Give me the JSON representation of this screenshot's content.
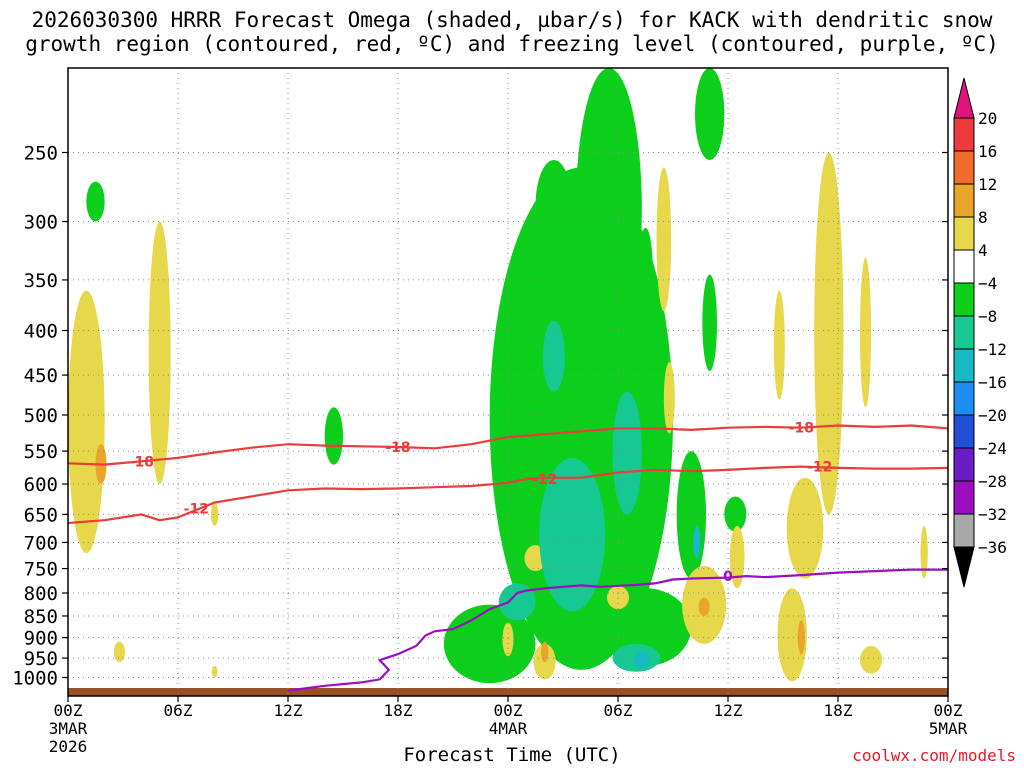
{
  "title": {
    "line1": "2026030300 HRRR Forecast Omega (shaded, µbar/s) for KACK with dendritic snow",
    "line2": "growth region (contoured, red, ºC) and freezing level (contoured, purple, ºC)"
  },
  "credit": "coolwx.com/models",
  "chart_data": {
    "type": "heatmap",
    "title": "2026030300 HRRR Forecast Omega (shaded, µbar/s) for KACK with dendritic snow growth region (contoured, red, ºC) and freezing level (contoured, purple, ºC)",
    "xlabel": "Forecast Time (UTC)",
    "ylabel": "",
    "x_range_hours": [
      0,
      48
    ],
    "y_range_hPa": [
      1050,
      200
    ],
    "y_scale": "log-pressure",
    "grid": "dotted",
    "x_ticks": [
      {
        "h": 0,
        "label": "00Z",
        "sub1": "3MAR",
        "sub2": "2026"
      },
      {
        "h": 6,
        "label": "06Z",
        "sub1": "",
        "sub2": ""
      },
      {
        "h": 12,
        "label": "12Z",
        "sub1": "",
        "sub2": ""
      },
      {
        "h": 18,
        "label": "18Z",
        "sub1": "",
        "sub2": ""
      },
      {
        "h": 24,
        "label": "00Z",
        "sub1": "4MAR",
        "sub2": ""
      },
      {
        "h": 30,
        "label": "06Z",
        "sub1": "",
        "sub2": ""
      },
      {
        "h": 36,
        "label": "12Z",
        "sub1": "",
        "sub2": ""
      },
      {
        "h": 42,
        "label": "18Z",
        "sub1": "",
        "sub2": ""
      },
      {
        "h": 48,
        "label": "00Z",
        "sub1": "5MAR",
        "sub2": ""
      }
    ],
    "y_ticks": [
      250,
      300,
      350,
      400,
      450,
      500,
      550,
      600,
      650,
      700,
      750,
      800,
      850,
      900,
      950,
      1000
    ],
    "colorbar": {
      "labels": [
        "20",
        "16",
        "12",
        "8",
        "4",
        "−4",
        "−8",
        "−12",
        "−16",
        "−20",
        "−24",
        "−28",
        "−32",
        "−36"
      ],
      "colors": [
        "#e0147f",
        "#ee3a3a",
        "#f26b2c",
        "#e9a42a",
        "#e6d84a",
        "#ffffff",
        "#0ccf1c",
        "#16c993",
        "#17b9c7",
        "#1f8ef3",
        "#1f4fd6",
        "#6a1dc4",
        "#9c0fc0",
        "#a9a9a9",
        "#000000"
      ]
    },
    "contours": [
      {
        "name": "-18",
        "color": "#ec3b3b",
        "points": [
          [
            0,
            568
          ],
          [
            2,
            570
          ],
          [
            4,
            565
          ],
          [
            6,
            560
          ],
          [
            8,
            552
          ],
          [
            10,
            545
          ],
          [
            12,
            540
          ],
          [
            14,
            542
          ],
          [
            16,
            543
          ],
          [
            18,
            544
          ],
          [
            20,
            546
          ],
          [
            22,
            540
          ],
          [
            24,
            530
          ],
          [
            26,
            526
          ],
          [
            28,
            522
          ],
          [
            30,
            518
          ],
          [
            32,
            518
          ],
          [
            34,
            520
          ],
          [
            36,
            517
          ],
          [
            38,
            516
          ],
          [
            40,
            517
          ],
          [
            42,
            514
          ],
          [
            44,
            516
          ],
          [
            46,
            514
          ],
          [
            48,
            518
          ]
        ],
        "labels": [
          [
            4,
            565
          ],
          [
            18,
            544
          ],
          [
            40,
            517
          ]
        ]
      },
      {
        "name": "-12",
        "color": "#ec3b3b",
        "points": [
          [
            0,
            665
          ],
          [
            2,
            660
          ],
          [
            4,
            650
          ],
          [
            5,
            660
          ],
          [
            6,
            655
          ],
          [
            8,
            630
          ],
          [
            10,
            620
          ],
          [
            12,
            610
          ],
          [
            14,
            607
          ],
          [
            16,
            608
          ],
          [
            18,
            607
          ],
          [
            20,
            605
          ],
          [
            22,
            603
          ],
          [
            24,
            598
          ],
          [
            25,
            592
          ],
          [
            26,
            590
          ],
          [
            28,
            590
          ],
          [
            30,
            582
          ],
          [
            32,
            578
          ],
          [
            34,
            580
          ],
          [
            36,
            578
          ],
          [
            38,
            575
          ],
          [
            40,
            573
          ],
          [
            42,
            575
          ],
          [
            44,
            576
          ],
          [
            46,
            576
          ],
          [
            48,
            575
          ]
        ],
        "labels": [
          [
            7,
            640
          ],
          [
            26,
            592
          ],
          [
            41,
            573
          ]
        ]
      },
      {
        "name": "0",
        "color": "#9a0fc0",
        "points": [
          [
            12,
            1035
          ],
          [
            14,
            1022
          ],
          [
            16,
            1013
          ],
          [
            17,
            1005
          ],
          [
            17.5,
            980
          ],
          [
            17,
            955
          ],
          [
            18,
            940
          ],
          [
            19,
            920
          ],
          [
            19.5,
            895
          ],
          [
            20,
            885
          ],
          [
            21,
            880
          ],
          [
            22,
            860
          ],
          [
            23,
            835
          ],
          [
            24,
            820
          ],
          [
            24.5,
            800
          ],
          [
            25,
            795
          ],
          [
            26,
            790
          ],
          [
            28,
            784
          ],
          [
            29,
            787
          ],
          [
            31,
            783
          ],
          [
            32,
            780
          ],
          [
            33,
            772
          ],
          [
            34,
            770
          ],
          [
            36,
            768
          ],
          [
            37,
            765
          ],
          [
            38,
            767
          ],
          [
            40,
            763
          ],
          [
            42,
            758
          ],
          [
            44,
            755
          ],
          [
            46,
            752
          ],
          [
            48,
            752
          ]
        ],
        "labels": [
          [
            36,
            765
          ]
        ]
      }
    ],
    "omega_regions": [
      {
        "band": "4-8",
        "cx": 1.0,
        "cy": 540,
        "rx": 1.0,
        "ry": 180
      },
      {
        "band": "8-12",
        "cx": 1.8,
        "cy": 570,
        "rx": 0.3,
        "ry": 30
      },
      {
        "band": "4-8",
        "cx": 5.0,
        "cy": 450,
        "rx": 0.6,
        "ry": 150
      },
      {
        "band": "4-8",
        "cx": 2.8,
        "cy": 935,
        "rx": 0.3,
        "ry": 25
      },
      {
        "band": "4-8",
        "cx": 8.0,
        "cy": 650,
        "rx": 0.2,
        "ry": 20
      },
      {
        "band": "4-8",
        "cx": 8.0,
        "cy": 985,
        "rx": 0.15,
        "ry": 15
      },
      {
        "band": "-4--8",
        "cx": 1.5,
        "cy": 285,
        "rx": 0.5,
        "ry": 15
      },
      {
        "band": "-4--8",
        "cx": 14.5,
        "cy": 530,
        "rx": 0.5,
        "ry": 40
      },
      {
        "band": "-4--8",
        "cx": 23.0,
        "cy": 920,
        "rx": 2.5,
        "ry": 95
      },
      {
        "band": "-4--8",
        "cx": 28.0,
        "cy": 620,
        "rx": 5.0,
        "ry": 360
      },
      {
        "band": "-4--8",
        "cx": 29.5,
        "cy": 310,
        "rx": 1.8,
        "ry": 110
      },
      {
        "band": "-4--8",
        "cx": 26.5,
        "cy": 290,
        "rx": 1.0,
        "ry": 35
      },
      {
        "band": "-4--8",
        "cx": 31.5,
        "cy": 880,
        "rx": 2.5,
        "ry": 90
      },
      {
        "band": "-4--8",
        "cx": 34.0,
        "cy": 660,
        "rx": 0.8,
        "ry": 110
      },
      {
        "band": "-4--8",
        "cx": 35.0,
        "cy": 215,
        "rx": 0.8,
        "ry": 40
      },
      {
        "band": "-4--8",
        "cx": 31.5,
        "cy": 345,
        "rx": 0.4,
        "ry": 40
      },
      {
        "band": "-4--8",
        "cx": 35.0,
        "cy": 395,
        "rx": 0.4,
        "ry": 50
      },
      {
        "band": "-4--8",
        "cx": 36.4,
        "cy": 650,
        "rx": 0.6,
        "ry": 30
      },
      {
        "band": "-4--8",
        "cx": 22.0,
        "cy": 975,
        "rx": 0.5,
        "ry": 20
      },
      {
        "band": "-8--12",
        "cx": 27.5,
        "cy": 700,
        "rx": 1.8,
        "ry": 140
      },
      {
        "band": "-8--12",
        "cx": 30.5,
        "cy": 560,
        "rx": 0.8,
        "ry": 90
      },
      {
        "band": "-8--12",
        "cx": 26.5,
        "cy": 430,
        "rx": 0.6,
        "ry": 40
      },
      {
        "band": "-8--12",
        "cx": 24.5,
        "cy": 820,
        "rx": 1.0,
        "ry": 40
      },
      {
        "band": "-8--12",
        "cx": 31.0,
        "cy": 950,
        "rx": 1.3,
        "ry": 35
      },
      {
        "band": "-12--16",
        "cx": 34.3,
        "cy": 700,
        "rx": 0.2,
        "ry": 30
      },
      {
        "band": "-12--16",
        "cx": 31.3,
        "cy": 955,
        "rx": 0.4,
        "ry": 20
      },
      {
        "band": "4-8",
        "cx": 25.5,
        "cy": 730,
        "rx": 0.6,
        "ry": 25
      },
      {
        "band": "4-8",
        "cx": 26.0,
        "cy": 960,
        "rx": 0.6,
        "ry": 45
      },
      {
        "band": "4-8",
        "cx": 24.0,
        "cy": 905,
        "rx": 0.3,
        "ry": 40
      },
      {
        "band": "4-8",
        "cx": 30.0,
        "cy": 810,
        "rx": 0.6,
        "ry": 25
      },
      {
        "band": "4-8",
        "cx": 34.7,
        "cy": 830,
        "rx": 1.2,
        "ry": 85
      },
      {
        "band": "4-8",
        "cx": 39.5,
        "cy": 900,
        "rx": 0.8,
        "ry": 110
      },
      {
        "band": "4-8",
        "cx": 40.2,
        "cy": 680,
        "rx": 1.0,
        "ry": 90
      },
      {
        "band": "4-8",
        "cx": 41.5,
        "cy": 450,
        "rx": 0.8,
        "ry": 200
      },
      {
        "band": "4-8",
        "cx": 43.8,
        "cy": 955,
        "rx": 0.6,
        "ry": 35
      },
      {
        "band": "4-8",
        "cx": 43.5,
        "cy": 410,
        "rx": 0.3,
        "ry": 80
      },
      {
        "band": "4-8",
        "cx": 32.5,
        "cy": 320,
        "rx": 0.4,
        "ry": 60
      },
      {
        "band": "4-8",
        "cx": 38.8,
        "cy": 420,
        "rx": 0.3,
        "ry": 60
      },
      {
        "band": "4-8",
        "cx": 36.5,
        "cy": 730,
        "rx": 0.4,
        "ry": 60
      },
      {
        "band": "4-8",
        "cx": 46.7,
        "cy": 720,
        "rx": 0.2,
        "ry": 50
      },
      {
        "band": "4-8",
        "cx": 32.8,
        "cy": 480,
        "rx": 0.3,
        "ry": 45
      },
      {
        "band": "8-12",
        "cx": 26.0,
        "cy": 935,
        "rx": 0.2,
        "ry": 25
      },
      {
        "band": "8-12",
        "cx": 34.7,
        "cy": 830,
        "rx": 0.3,
        "ry": 20
      },
      {
        "band": "8-12",
        "cx": 40.0,
        "cy": 900,
        "rx": 0.2,
        "ry": 40
      }
    ],
    "ground": {
      "color": "#9a4e24"
    }
  }
}
